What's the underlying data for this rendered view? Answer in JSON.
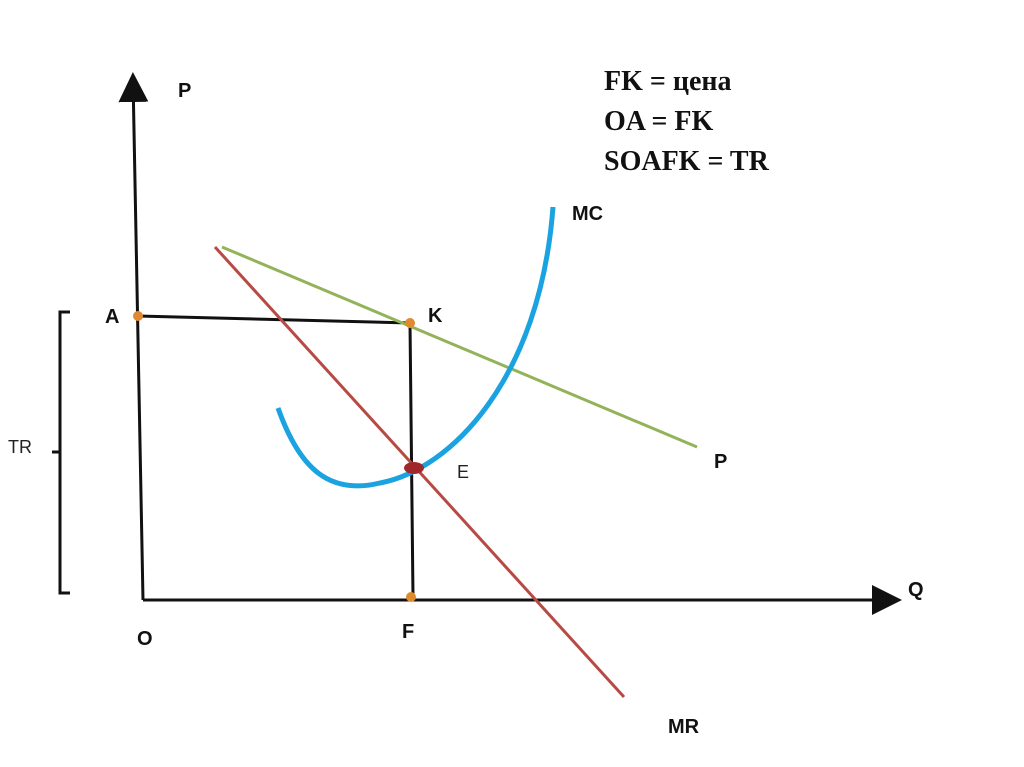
{
  "axes": {
    "y_label": "P",
    "x_label": "Q",
    "origin": "O"
  },
  "points": {
    "a": "A",
    "k": "K",
    "f": "F",
    "e": "E"
  },
  "curves": {
    "mc": "MC",
    "price": "P",
    "mr": "MR"
  },
  "bracket_label": "TR",
  "notes": [
    "FK = цена",
    "OA = FK",
    "SOAFK = TR"
  ]
}
